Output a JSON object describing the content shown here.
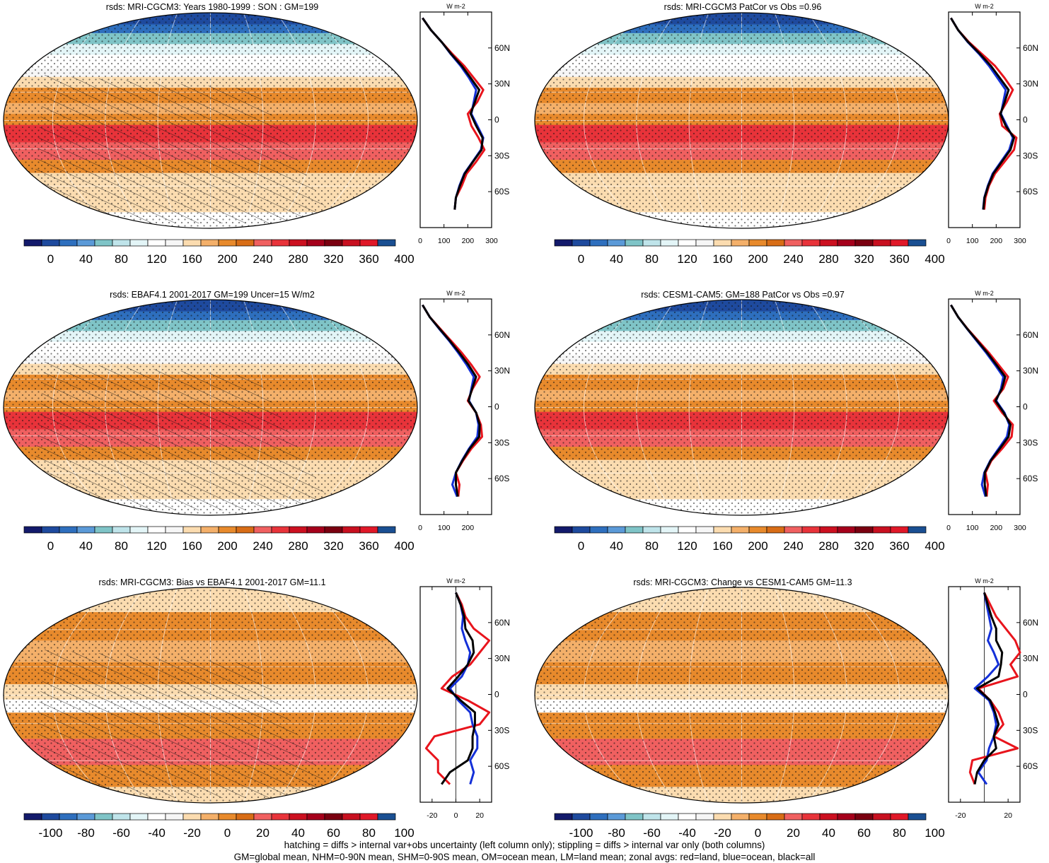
{
  "colors": {
    "abs_scale": [
      "#131a6b",
      "#1e4a9e",
      "#2e6fbe",
      "#5b9ad8",
      "#7fc4c7",
      "#bfe4ea",
      "#e3f5f7",
      "#ffffff",
      "#f6f6f6",
      "#fbdcb0",
      "#f4b06a",
      "#e88a2c",
      "#d86d16",
      "#f06060",
      "#e8333a",
      "#cc1020",
      "#a5001b",
      "#7a0010",
      "#c81020",
      "#e01828",
      "#1a4f92"
    ],
    "diff_scale": [
      "#131a6b",
      "#1e4a9e",
      "#2e6fbe",
      "#5b9ad8",
      "#7fc4c7",
      "#bfe4ea",
      "#e3f5f7",
      "#ffffff",
      "#f6f6f6",
      "#fbdcb0",
      "#f4b06a",
      "#e88a2c",
      "#d86d16",
      "#f06060",
      "#e8333a",
      "#cc1020",
      "#a5001b",
      "#7a0010",
      "#c81020",
      "#e01828",
      "#1a4f92"
    ],
    "land": "#e8141c",
    "ocean": "#1430d8",
    "all": "#000000"
  },
  "abs_colorbar_labels": [
    "0",
    "40",
    "80",
    "120",
    "160",
    "200",
    "240",
    "280",
    "320",
    "360",
    "400"
  ],
  "diff_colorbar_labels": [
    "-100",
    "-80",
    "-60",
    "-40",
    "-20",
    "0",
    "20",
    "40",
    "60",
    "80",
    "100"
  ],
  "footer": {
    "line1": "hatching = diffs > internal var+obs uncertainty (left column only); stippling = diffs > internal var only (both columns)",
    "line2": "GM=global mean, NHM=0-90N mean, SHM=0-90S mean, OM=ocean mean, LM=land mean; zonal avgs: red=land, blue=ocean, black=all"
  },
  "chart_data": [
    {
      "type": "heatmap",
      "title": "rsds: MRI-CGCM3: Years 1980-1999 : SON : GM=199",
      "colorbar": "abs",
      "zonal": {
        "xticks": [
          "0",
          "100",
          "200",
          "300"
        ],
        "xlim": [
          0,
          300
        ],
        "yticks": [
          "60N",
          "30N",
          "0",
          "30S",
          "60S"
        ],
        "unit": "W m-2",
        "lat": [
          85,
          75,
          65,
          55,
          45,
          35,
          25,
          15,
          5,
          -5,
          -15,
          -25,
          -35,
          -45,
          -55,
          -65,
          -75
        ],
        "series": [
          {
            "name": "land",
            "values": [
              10,
              45,
              90,
              135,
              185,
              225,
              265,
              240,
              200,
              215,
              245,
              270,
              235,
              195,
              175,
              150,
              145
            ]
          },
          {
            "name": "ocean",
            "values": [
              10,
              45,
              90,
              128,
              170,
              205,
              235,
              225,
              215,
              240,
              265,
              255,
              220,
              185,
              165,
              150,
              145
            ]
          },
          {
            "name": "all",
            "values": [
              10,
              45,
              90,
              130,
              175,
              212,
              248,
              230,
              212,
              235,
              262,
              258,
              222,
              187,
              167,
              150,
              145
            ]
          }
        ]
      }
    },
    {
      "type": "heatmap",
      "title": "rsds: MRI-CGCM3 PatCor vs Obs =0.96",
      "colorbar": "abs",
      "zonal": {
        "xticks": [
          "0",
          "100",
          "200",
          "300"
        ],
        "xlim": [
          0,
          300
        ],
        "yticks": [
          "60N",
          "30N",
          "0",
          "30S",
          "60S"
        ],
        "unit": "W m-2",
        "lat": [
          85,
          75,
          65,
          55,
          45,
          35,
          25,
          15,
          5,
          -5,
          -15,
          -25,
          -35,
          -45,
          -55,
          -65,
          -75
        ],
        "series": [
          {
            "name": "land",
            "values": [
              10,
              40,
              85,
              140,
              195,
              235,
              270,
              245,
              215,
              225,
              285,
              275,
              235,
              195,
              170,
              155,
              150
            ]
          },
          {
            "name": "ocean",
            "values": [
              10,
              40,
              80,
              128,
              170,
              205,
              240,
              230,
              220,
              245,
              270,
              255,
              220,
              185,
              165,
              150,
              145
            ]
          },
          {
            "name": "all",
            "values": [
              10,
              40,
              82,
              132,
              178,
              215,
              252,
              236,
              218,
              240,
              275,
              260,
              224,
              188,
              167,
              151,
              146
            ]
          }
        ]
      }
    },
    {
      "type": "heatmap",
      "title": "rsds: EBAF4.1 2001-2017 GM=199 Uncer=15 W/m2",
      "colorbar": "abs",
      "zonal": {
        "xticks": [
          "0",
          "100",
          "200"
        ],
        "xlim": [
          0,
          300
        ],
        "yticks": [
          "60N",
          "30N",
          "0",
          "30S",
          "60S"
        ],
        "unit": "W m-2",
        "lat": [
          85,
          75,
          65,
          55,
          45,
          35,
          25,
          15,
          5,
          -5,
          -15,
          -25,
          -35,
          -45,
          -55,
          -65,
          -75
        ],
        "series": [
          {
            "name": "land",
            "values": [
              10,
              40,
              85,
              130,
              175,
              215,
              250,
              220,
              200,
              235,
              255,
              260,
              215,
              180,
              150,
              165,
              160
            ]
          },
          {
            "name": "ocean",
            "values": [
              10,
              40,
              80,
              122,
              160,
              195,
              225,
              215,
              205,
              235,
              245,
              240,
              205,
              175,
              150,
              135,
              155
            ]
          },
          {
            "name": "all",
            "values": [
              10,
              40,
              82,
              125,
              165,
              203,
              235,
              218,
              203,
              235,
              250,
              248,
              208,
              177,
              150,
              150,
              158
            ]
          }
        ]
      }
    },
    {
      "type": "heatmap",
      "title": "rsds: CESM1-CAM5: GM=188 PatCor vs Obs =0.97",
      "colorbar": "abs",
      "zonal": {
        "xticks": [
          "0",
          "100",
          "200",
          "300"
        ],
        "xlim": [
          0,
          300
        ],
        "yticks": [
          "60N",
          "30N",
          "0",
          "30S",
          "60S"
        ],
        "unit": "W m-2",
        "lat": [
          85,
          75,
          65,
          55,
          45,
          35,
          25,
          15,
          5,
          -5,
          -15,
          -25,
          -35,
          -45,
          -55,
          -65,
          -75
        ],
        "series": [
          {
            "name": "land",
            "values": [
              10,
              40,
              80,
              125,
              170,
              210,
              250,
              230,
              190,
              225,
              270,
              265,
              225,
              180,
              155,
              165,
              160
            ]
          },
          {
            "name": "ocean",
            "values": [
              10,
              40,
              78,
              118,
              158,
              195,
              230,
              220,
              200,
              235,
              255,
              245,
              210,
              175,
              150,
              140,
              155
            ]
          },
          {
            "name": "all",
            "values": [
              10,
              40,
              79,
              121,
              163,
              201,
              238,
              224,
              197,
              232,
              260,
              252,
              215,
              177,
              152,
              152,
              158
            ]
          }
        ]
      }
    },
    {
      "type": "heatmap",
      "title": "rsds: MRI-CGCM3: Bias vs EBAF4.1 2001-2017  GM=11.1",
      "colorbar": "diff",
      "zonal": {
        "xticks": [
          "-20",
          "0",
          "20"
        ],
        "xlim": [
          -30,
          30
        ],
        "yticks": [
          "60N",
          "30N",
          "0",
          "30S",
          "60S"
        ],
        "unit": "W m-2",
        "lat": [
          85,
          75,
          65,
          55,
          45,
          35,
          25,
          15,
          5,
          -5,
          -15,
          -25,
          -35,
          -45,
          -55,
          -65,
          -75
        ],
        "series": [
          {
            "name": "land",
            "values": [
              0,
              5,
              8,
              15,
              28,
              20,
              12,
              -3,
              -12,
              10,
              28,
              20,
              -18,
              -25,
              -15,
              -15,
              -5
            ]
          },
          {
            "name": "ocean",
            "values": [
              0,
              4,
              6,
              5,
              8,
              12,
              10,
              5,
              -5,
              2,
              12,
              14,
              18,
              18,
              12,
              15,
              12
            ]
          },
          {
            "name": "all",
            "values": [
              0,
              4,
              7,
              8,
              14,
              15,
              10,
              2,
              -7,
              4,
              16,
              16,
              14,
              14,
              10,
              -5,
              -12
            ]
          }
        ]
      }
    },
    {
      "type": "heatmap",
      "title": "rsds: MRI-CGCM3: Change vs CESM1-CAM5 GM=11.3",
      "colorbar": "diff",
      "zonal": {
        "xticks": [
          "-20",
          "20"
        ],
        "xlim": [
          -30,
          30
        ],
        "yticks": [
          "60N",
          "30N",
          "0",
          "30S",
          "60S"
        ],
        "unit": "W m-2",
        "lat": [
          85,
          75,
          65,
          55,
          45,
          35,
          25,
          15,
          5,
          -5,
          -15,
          -25,
          -35,
          -45,
          -55,
          -65,
          -75
        ],
        "series": [
          {
            "name": "land",
            "values": [
              0,
              5,
              10,
              18,
              26,
              30,
              22,
              28,
              -5,
              5,
              12,
              16,
              8,
              28,
              -10,
              -12,
              -8
            ]
          },
          {
            "name": "ocean",
            "values": [
              0,
              2,
              4,
              6,
              3,
              8,
              12,
              3,
              -8,
              4,
              8,
              10,
              8,
              4,
              2,
              -5,
              2
            ]
          },
          {
            "name": "all",
            "values": [
              0,
              3,
              6,
              10,
              10,
              15,
              14,
              12,
              -6,
              5,
              9,
              12,
              8,
              10,
              0,
              -6,
              -8
            ]
          }
        ]
      }
    }
  ]
}
